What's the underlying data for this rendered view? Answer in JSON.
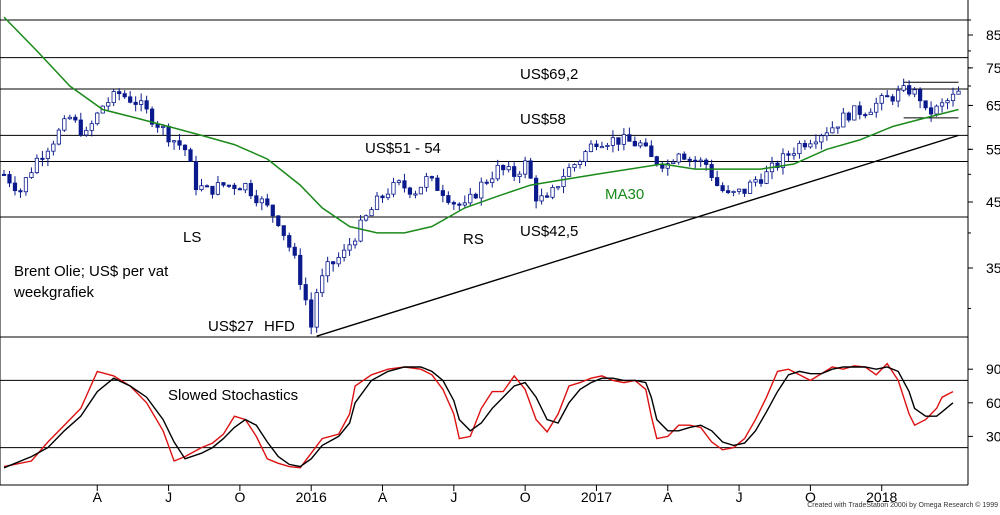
{
  "chart_data": [
    {
      "type": "candlestick",
      "title": "Brent Olie; US$ per vat",
      "subtitle": "weekgrafiek",
      "y_scale": "log",
      "ylim": [
        27,
        95
      ],
      "y_ticks": [
        "35.00",
        "45.00",
        "55.00",
        "65.00",
        "75.00",
        "85.00"
      ],
      "y_tick_values": [
        35,
        45,
        55,
        65,
        75,
        85
      ],
      "x_ticks": [
        "A",
        "J",
        "O",
        "2016",
        "A",
        "J",
        "O",
        "2017",
        "A",
        "J",
        "O",
        "2018"
      ],
      "horizontal_levels": [
        42.5,
        52.5,
        58,
        69.2,
        78,
        90
      ],
      "annotations": {
        "level_69": "US$69,2",
        "level_58": "US$58",
        "level_51_54": "US$51 - 54",
        "level_42": "US$42,5",
        "low": "US$27",
        "hfd": "HFD",
        "ls": "LS",
        "rs": "RS",
        "ma_label": "MA30"
      },
      "ma30_color": "#1a8a1a",
      "candle_up_color": "#ffffff",
      "candle_down_color": "#0a1a8c",
      "close_path": [
        [
          0,
          50
        ],
        [
          3,
          47
        ],
        [
          6,
          53
        ],
        [
          9,
          57
        ],
        [
          12,
          62
        ],
        [
          15,
          58
        ],
        [
          18,
          65
        ],
        [
          21,
          68
        ],
        [
          24,
          66
        ],
        [
          27,
          62
        ],
        [
          30,
          58
        ],
        [
          33,
          55
        ],
        [
          35,
          48
        ],
        [
          37,
          47
        ],
        [
          40,
          48
        ],
        [
          44,
          48
        ],
        [
          47,
          45
        ],
        [
          50,
          42
        ],
        [
          53,
          36
        ],
        [
          55,
          31
        ],
        [
          56,
          28
        ],
        [
          57,
          32
        ],
        [
          59,
          35
        ],
        [
          62,
          37
        ],
        [
          65,
          41
        ],
        [
          68,
          45
        ],
        [
          70,
          47
        ],
        [
          72,
          48
        ],
        [
          75,
          47
        ],
        [
          77,
          49
        ],
        [
          80,
          47
        ],
        [
          82,
          45
        ],
        [
          84,
          44
        ],
        [
          87,
          48
        ],
        [
          90,
          51
        ],
        [
          93,
          50
        ],
        [
          95,
          52
        ],
        [
          97,
          46
        ],
        [
          99,
          45
        ],
        [
          102,
          50
        ],
        [
          105,
          53
        ],
        [
          108,
          57
        ],
        [
          112,
          57
        ],
        [
          116,
          56
        ],
        [
          118,
          53
        ],
        [
          121,
          52
        ],
        [
          123,
          55
        ],
        [
          125,
          53
        ],
        [
          128,
          52
        ],
        [
          130,
          48
        ],
        [
          132,
          46
        ],
        [
          135,
          47
        ],
        [
          137,
          49
        ],
        [
          139,
          50
        ],
        [
          142,
          53
        ],
        [
          145,
          56
        ],
        [
          148,
          58
        ],
        [
          151,
          60
        ],
        [
          154,
          63
        ],
        [
          157,
          64
        ],
        [
          160,
          66
        ],
        [
          163,
          68
        ],
        [
          165,
          69
        ],
        [
          167,
          67
        ],
        [
          168,
          63
        ],
        [
          170,
          64
        ],
        [
          172,
          66
        ],
        [
          174,
          68
        ]
      ],
      "ma30": [
        [
          0,
          91
        ],
        [
          6,
          80
        ],
        [
          12,
          70
        ],
        [
          18,
          64
        ],
        [
          24,
          62
        ],
        [
          30,
          60
        ],
        [
          36,
          58
        ],
        [
          42,
          56
        ],
        [
          48,
          53
        ],
        [
          54,
          48
        ],
        [
          58,
          44
        ],
        [
          63,
          41
        ],
        [
          68,
          40
        ],
        [
          73,
          40
        ],
        [
          78,
          41
        ],
        [
          84,
          44
        ],
        [
          90,
          46
        ],
        [
          96,
          48
        ],
        [
          102,
          49
        ],
        [
          108,
          50
        ],
        [
          114,
          51
        ],
        [
          120,
          52
        ],
        [
          126,
          51
        ],
        [
          132,
          51
        ],
        [
          138,
          51
        ],
        [
          144,
          52
        ],
        [
          150,
          55
        ],
        [
          156,
          57
        ],
        [
          162,
          60
        ],
        [
          168,
          62
        ],
        [
          174,
          64
        ]
      ],
      "trendline": [
        [
          57,
          27
        ],
        [
          174,
          58
        ]
      ],
      "box_2018": {
        "x": [
          164,
          174
        ],
        "y": [
          62,
          71
        ]
      }
    },
    {
      "type": "line",
      "title": "Slowed Stochastics",
      "ylim": [
        0,
        100
      ],
      "y_ticks": [
        "30.00",
        "60.00",
        "90.00"
      ],
      "y_tick_values": [
        30,
        60,
        90
      ],
      "horizontal_levels": [
        20,
        80
      ],
      "series": [
        {
          "color": "#dd1111",
          "values": [
            [
              0,
              3
            ],
            [
              5,
              8
            ],
            [
              8,
              25
            ],
            [
              11,
              40
            ],
            [
              14,
              55
            ],
            [
              17,
              88
            ],
            [
              20,
              84
            ],
            [
              23,
              75
            ],
            [
              26,
              60
            ],
            [
              29,
              35
            ],
            [
              31,
              8
            ],
            [
              33,
              12
            ],
            [
              36,
              20
            ],
            [
              38,
              24
            ],
            [
              40,
              32
            ],
            [
              42,
              48
            ],
            [
              44,
              45
            ],
            [
              46,
              30
            ],
            [
              48,
              10
            ],
            [
              50,
              6
            ],
            [
              52,
              3
            ],
            [
              54,
              2
            ],
            [
              56,
              15
            ],
            [
              58,
              28
            ],
            [
              61,
              32
            ],
            [
              63,
              50
            ],
            [
              64,
              75
            ],
            [
              67,
              85
            ],
            [
              70,
              90
            ],
            [
              73,
              92
            ],
            [
              76,
              90
            ],
            [
              78,
              85
            ],
            [
              80,
              72
            ],
            [
              82,
              50
            ],
            [
              83,
              28
            ],
            [
              85,
              30
            ],
            [
              87,
              55
            ],
            [
              89,
              70
            ],
            [
              91,
              70
            ],
            [
              93,
              84
            ],
            [
              95,
              72
            ],
            [
              97,
              45
            ],
            [
              99,
              34
            ],
            [
              101,
              50
            ],
            [
              103,
              75
            ],
            [
              105,
              78
            ],
            [
              107,
              82
            ],
            [
              109,
              84
            ],
            [
              111,
              80
            ],
            [
              113,
              78
            ],
            [
              115,
              80
            ],
            [
              117,
              72
            ],
            [
              118,
              48
            ],
            [
              119,
              28
            ],
            [
              121,
              30
            ],
            [
              123,
              40
            ],
            [
              125,
              40
            ],
            [
              127,
              38
            ],
            [
              129,
              25
            ],
            [
              131,
              18
            ],
            [
              133,
              20
            ],
            [
              135,
              28
            ],
            [
              137,
              45
            ],
            [
              139,
              65
            ],
            [
              141,
              88
            ],
            [
              143,
              90
            ],
            [
              145,
              85
            ],
            [
              147,
              80
            ],
            [
              149,
              86
            ],
            [
              151,
              92
            ],
            [
              153,
              90
            ],
            [
              155,
              93
            ],
            [
              157,
              92
            ],
            [
              159,
              85
            ],
            [
              161,
              95
            ],
            [
              163,
              80
            ],
            [
              165,
              50
            ],
            [
              166,
              40
            ],
            [
              168,
              45
            ],
            [
              170,
              55
            ],
            [
              171,
              65
            ],
            [
              173,
              70
            ]
          ]
        },
        {
          "color": "#000000",
          "values": [
            [
              0,
              2
            ],
            [
              5,
              12
            ],
            [
              8,
              20
            ],
            [
              11,
              35
            ],
            [
              14,
              48
            ],
            [
              17,
              70
            ],
            [
              20,
              82
            ],
            [
              23,
              75
            ],
            [
              26,
              65
            ],
            [
              29,
              45
            ],
            [
              31,
              25
            ],
            [
              33,
              10
            ],
            [
              36,
              15
            ],
            [
              38,
              20
            ],
            [
              40,
              28
            ],
            [
              42,
              38
            ],
            [
              44,
              45
            ],
            [
              46,
              40
            ],
            [
              48,
              25
            ],
            [
              50,
              12
            ],
            [
              52,
              5
            ],
            [
              54,
              3
            ],
            [
              56,
              10
            ],
            [
              58,
              22
            ],
            [
              61,
              30
            ],
            [
              63,
              42
            ],
            [
              64,
              60
            ],
            [
              67,
              80
            ],
            [
              70,
              88
            ],
            [
              73,
              92
            ],
            [
              76,
              92
            ],
            [
              78,
              88
            ],
            [
              80,
              80
            ],
            [
              82,
              62
            ],
            [
              83,
              45
            ],
            [
              85,
              35
            ],
            [
              87,
              42
            ],
            [
              89,
              55
            ],
            [
              91,
              65
            ],
            [
              93,
              75
            ],
            [
              95,
              78
            ],
            [
              97,
              65
            ],
            [
              99,
              45
            ],
            [
              101,
              42
            ],
            [
              103,
              60
            ],
            [
              105,
              72
            ],
            [
              107,
              78
            ],
            [
              109,
              82
            ],
            [
              111,
              82
            ],
            [
              113,
              80
            ],
            [
              115,
              80
            ],
            [
              117,
              78
            ],
            [
              118,
              65
            ],
            [
              119,
              45
            ],
            [
              121,
              35
            ],
            [
              123,
              35
            ],
            [
              125,
              38
            ],
            [
              127,
              40
            ],
            [
              129,
              35
            ],
            [
              131,
              25
            ],
            [
              133,
              22
            ],
            [
              135,
              24
            ],
            [
              137,
              35
            ],
            [
              139,
              52
            ],
            [
              141,
              70
            ],
            [
              143,
              85
            ],
            [
              145,
              88
            ],
            [
              147,
              86
            ],
            [
              149,
              86
            ],
            [
              151,
              90
            ],
            [
              153,
              92
            ],
            [
              155,
              92
            ],
            [
              157,
              92
            ],
            [
              159,
              90
            ],
            [
              161,
              92
            ],
            [
              163,
              88
            ],
            [
              165,
              70
            ],
            [
              166,
              55
            ],
            [
              168,
              48
            ],
            [
              170,
              48
            ],
            [
              171,
              52
            ],
            [
              173,
              60
            ]
          ]
        }
      ]
    }
  ],
  "credit": "Created with TradeStation 2000i by Omega Research © 1999"
}
